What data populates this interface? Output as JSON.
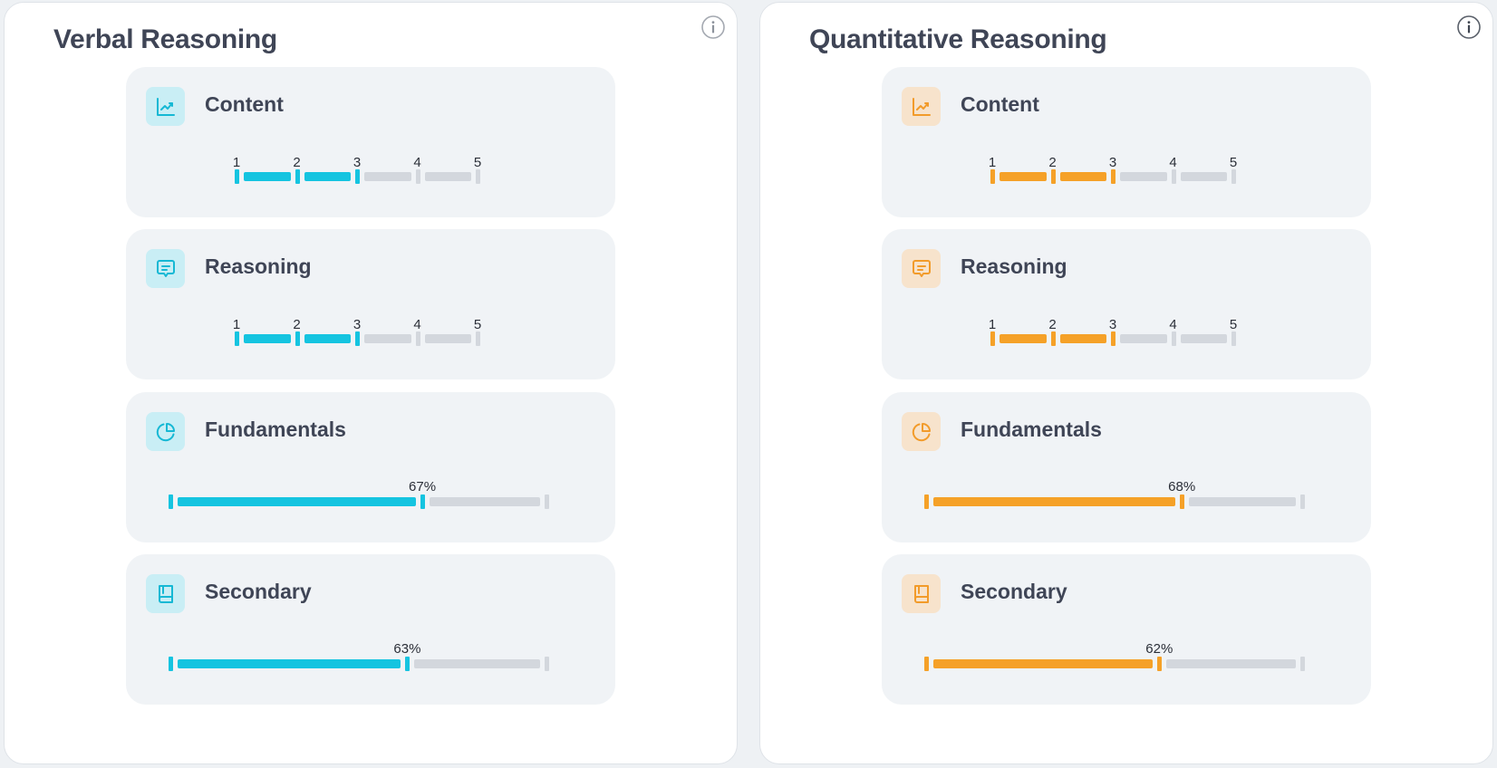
{
  "panels": [
    {
      "title": "Verbal Reasoning",
      "accent": "#15c4e0",
      "icon_color": "#15b8d4",
      "info_icon": "info-icon",
      "cards": [
        {
          "title": "Content",
          "icon": "line-chart-icon",
          "type": "levels",
          "scale": [
            "1",
            "2",
            "3",
            "4",
            "5"
          ],
          "level": 3
        },
        {
          "title": "Reasoning",
          "icon": "chat-bubble-icon",
          "type": "levels",
          "scale": [
            "1",
            "2",
            "3",
            "4",
            "5"
          ],
          "level": 3
        },
        {
          "title": "Fundamentals",
          "icon": "pie-chart-icon",
          "type": "percent",
          "value": 67,
          "label": "67%"
        },
        {
          "title": "Secondary",
          "icon": "book-icon",
          "type": "percent",
          "value": 63,
          "label": "63%"
        }
      ]
    },
    {
      "title": "Quantitative Reasoning",
      "accent": "#f5a128",
      "icon_color": "#f29b2a",
      "info_icon": "info-icon",
      "cards": [
        {
          "title": "Content",
          "icon": "line-chart-icon",
          "type": "levels",
          "scale": [
            "1",
            "2",
            "3",
            "4",
            "5"
          ],
          "level": 3
        },
        {
          "title": "Reasoning",
          "icon": "chat-bubble-icon",
          "type": "levels",
          "scale": [
            "1",
            "2",
            "3",
            "4",
            "5"
          ],
          "level": 3
        },
        {
          "title": "Fundamentals",
          "icon": "pie-chart-icon",
          "type": "percent",
          "value": 68,
          "label": "68%"
        },
        {
          "title": "Secondary",
          "icon": "book-icon",
          "type": "percent",
          "value": 62,
          "label": "62%"
        }
      ]
    }
  ]
}
